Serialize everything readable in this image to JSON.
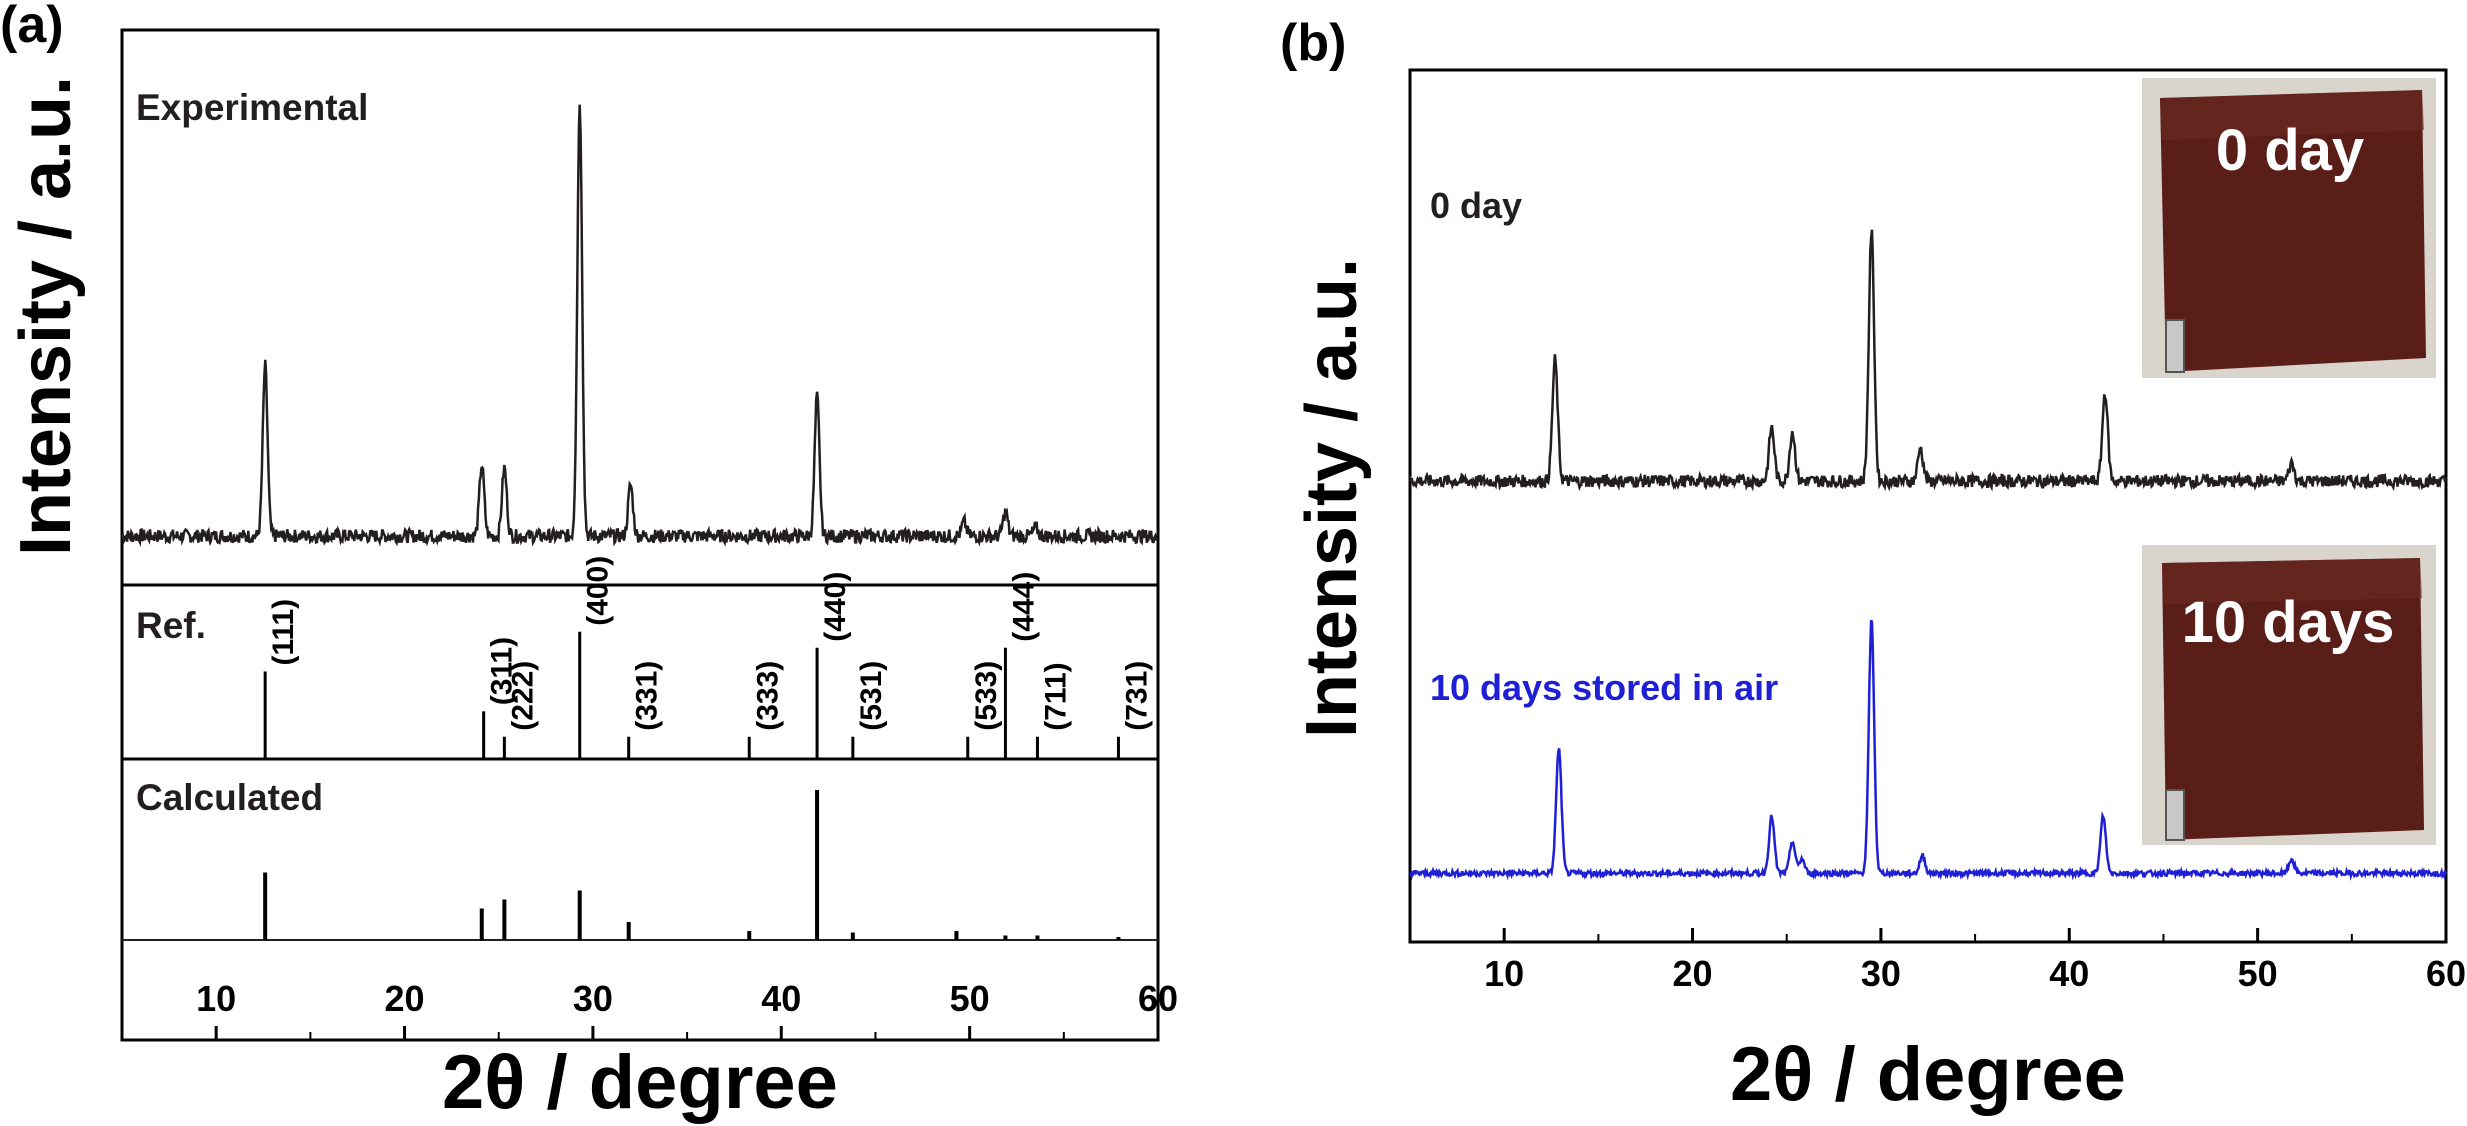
{
  "colors": {
    "black_series": "#231f20",
    "blue_series": "#1f1fd6",
    "photo_film": "#5a1e19",
    "photo_bg": "#d9d4cc"
  },
  "chart_data": [
    {
      "panel_label": "(a)",
      "type": "line",
      "x_axis": {
        "label": "2θ / degree",
        "xlim": [
          5,
          60
        ],
        "ticks": [
          10,
          20,
          30,
          40,
          50,
          60
        ]
      },
      "y_axis": {
        "label": "Intensity / a.u.",
        "ticks": false
      },
      "subpanels": [
        {
          "label": "Experimental",
          "type": "line",
          "baseline": 20,
          "noise": 4,
          "peaks": [
            {
              "x": 12.6,
              "height": 100
            },
            {
              "x": 24.1,
              "height": 42
            },
            {
              "x": 25.3,
              "height": 40
            },
            {
              "x": 29.3,
              "height": 255
            },
            {
              "x": 32.0,
              "height": 30
            },
            {
              "x": 41.9,
              "height": 82
            },
            {
              "x": 49.7,
              "height": 8
            },
            {
              "x": 51.9,
              "height": 14
            },
            {
              "x": 53.5,
              "height": 5
            }
          ],
          "ylim": [
            0,
            300
          ]
        },
        {
          "label": "Ref.",
          "type": "stick",
          "sticks": [
            {
              "x": 12.6,
              "height": 55,
              "hkl": "(111)"
            },
            {
              "x": 24.2,
              "height": 30,
              "hkl": "(311)"
            },
            {
              "x": 25.3,
              "height": 14,
              "hkl": "(222)"
            },
            {
              "x": 29.3,
              "height": 80,
              "hkl": "(400)"
            },
            {
              "x": 31.9,
              "height": 14,
              "hkl": "(331)"
            },
            {
              "x": 38.3,
              "height": 14,
              "hkl": "(333)"
            },
            {
              "x": 41.9,
              "height": 70,
              "hkl": "(440)"
            },
            {
              "x": 43.8,
              "height": 14,
              "hkl": "(531)"
            },
            {
              "x": 49.9,
              "height": 14,
              "hkl": "(533)"
            },
            {
              "x": 51.9,
              "height": 70,
              "hkl": "(444)"
            },
            {
              "x": 53.6,
              "height": 14,
              "hkl": "(711)"
            },
            {
              "x": 57.9,
              "height": 14,
              "hkl": "(731)"
            }
          ],
          "ylim": [
            0,
            100
          ]
        },
        {
          "label": "Calculated",
          "type": "stick",
          "sticks": [
            {
              "x": 12.6,
              "height": 45
            },
            {
              "x": 24.1,
              "height": 21
            },
            {
              "x": 25.3,
              "height": 27
            },
            {
              "x": 29.3,
              "height": 33
            },
            {
              "x": 31.9,
              "height": 12
            },
            {
              "x": 38.3,
              "height": 6
            },
            {
              "x": 41.9,
              "height": 100
            },
            {
              "x": 43.8,
              "height": 5
            },
            {
              "x": 49.3,
              "height": 6
            },
            {
              "x": 51.9,
              "height": 3
            },
            {
              "x": 53.6,
              "height": 3
            },
            {
              "x": 57.9,
              "height": 2
            }
          ],
          "ylim": [
            0,
            110
          ]
        }
      ]
    },
    {
      "panel_label": "(b)",
      "type": "line",
      "x_axis": {
        "label": "2θ / degree",
        "xlim": [
          5,
          60
        ],
        "ticks": [
          10,
          20,
          30,
          40,
          50,
          60
        ]
      },
      "y_axis": {
        "label": "Intensity / a.u.",
        "ticks": false
      },
      "series": [
        {
          "name": "0 day",
          "color": "#231f20",
          "offset": 235,
          "noise": 3.5,
          "peaks": [
            {
              "x": 12.7,
              "height": 68
            },
            {
              "x": 24.2,
              "height": 30
            },
            {
              "x": 25.3,
              "height": 28
            },
            {
              "x": 29.5,
              "height": 140
            },
            {
              "x": 32.1,
              "height": 18
            },
            {
              "x": 41.9,
              "height": 50
            },
            {
              "x": 51.8,
              "height": 10
            }
          ],
          "inset_photo_label": "0 day"
        },
        {
          "name": "10 days stored in air",
          "color": "#1f1fd6",
          "offset": 15,
          "noise": 1.5,
          "peaks": [
            {
              "x": 12.9,
              "height": 70
            },
            {
              "x": 24.2,
              "height": 32
            },
            {
              "x": 25.3,
              "height": 18
            },
            {
              "x": 25.8,
              "height": 8
            },
            {
              "x": 29.5,
              "height": 142
            },
            {
              "x": 32.2,
              "height": 10
            },
            {
              "x": 41.8,
              "height": 32
            },
            {
              "x": 51.8,
              "height": 8
            }
          ],
          "inset_photo_label": "10 days"
        }
      ],
      "ylim": [
        0,
        460
      ]
    }
  ]
}
